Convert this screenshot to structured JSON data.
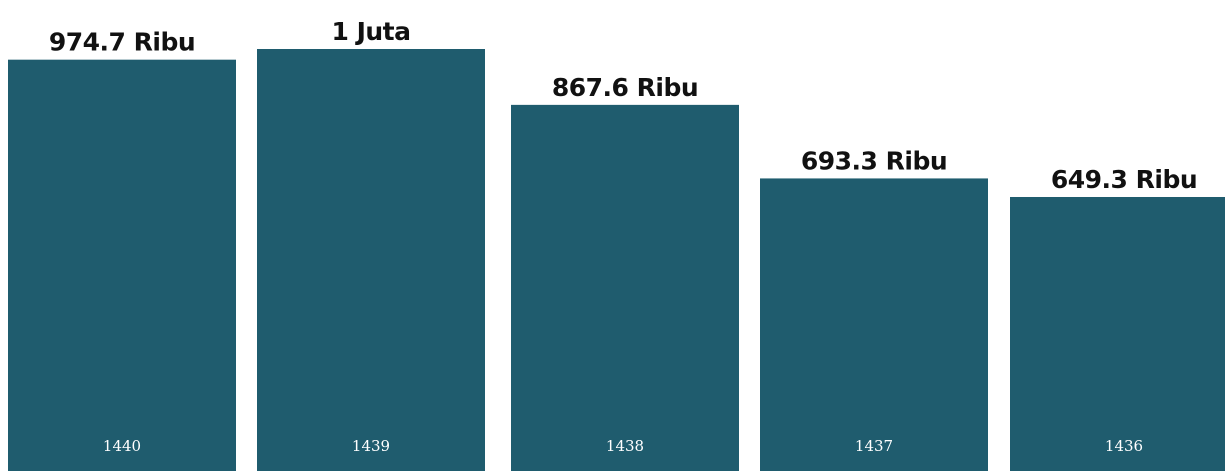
{
  "chart_data": {
    "type": "bar",
    "categories": [
      "1440",
      "1439",
      "1438",
      "1437",
      "1436"
    ],
    "values": [
      974700,
      1000000,
      867600,
      693300,
      649300
    ],
    "value_labels": [
      "974.7 Ribu",
      "1 Juta",
      "867.6 Ribu",
      "693.3 Ribu",
      "649.3 Ribu"
    ],
    "title": "",
    "xlabel": "",
    "ylabel": "",
    "ylim": [
      0,
      1000000
    ],
    "grid": false,
    "legend": "none",
    "bar_color": "#1f5c6e",
    "label_color": "#111111",
    "category_label_color": "#ffffff"
  }
}
